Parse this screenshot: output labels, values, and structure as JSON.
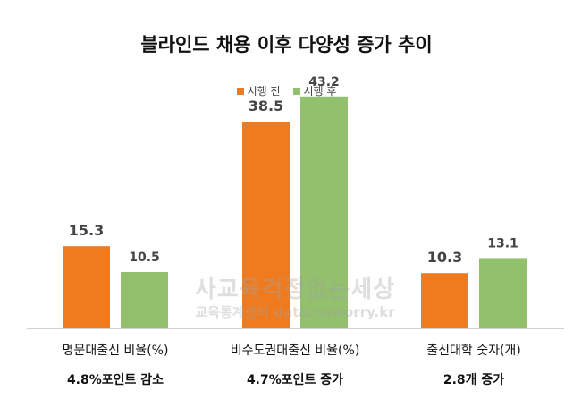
{
  "chart_data": {
    "type": "bar",
    "title": "블라인드 채용 이후 다양성 증가 추이",
    "categories": [
      "명문대출신 비율(%)",
      "비수도권대출신 비율(%)",
      "출신대학 숫자(개)"
    ],
    "notes": [
      "4.8%포인트 감소",
      "4.7%포인트 증가",
      "2.8개 증가"
    ],
    "series": [
      {
        "name": "시행 전",
        "values": [
          15.3,
          38.5,
          10.3
        ],
        "labels": [
          "15.3",
          "38.5",
          "10.3"
        ],
        "color": "#F07B1E"
      },
      {
        "name": "시행 후",
        "values": [
          10.5,
          43.2,
          13.1
        ],
        "labels": [
          "10.5",
          "43.2",
          "13.1"
        ],
        "color": "#92C06C"
      }
    ],
    "ylim": [
      0,
      50
    ],
    "xlabel": "",
    "ylabel": "",
    "legend": "top-center",
    "grid": false
  },
  "watermark": {
    "main": "사교육걱정없는세상",
    "sub": "교육통계센터 data.noworry.kr"
  }
}
